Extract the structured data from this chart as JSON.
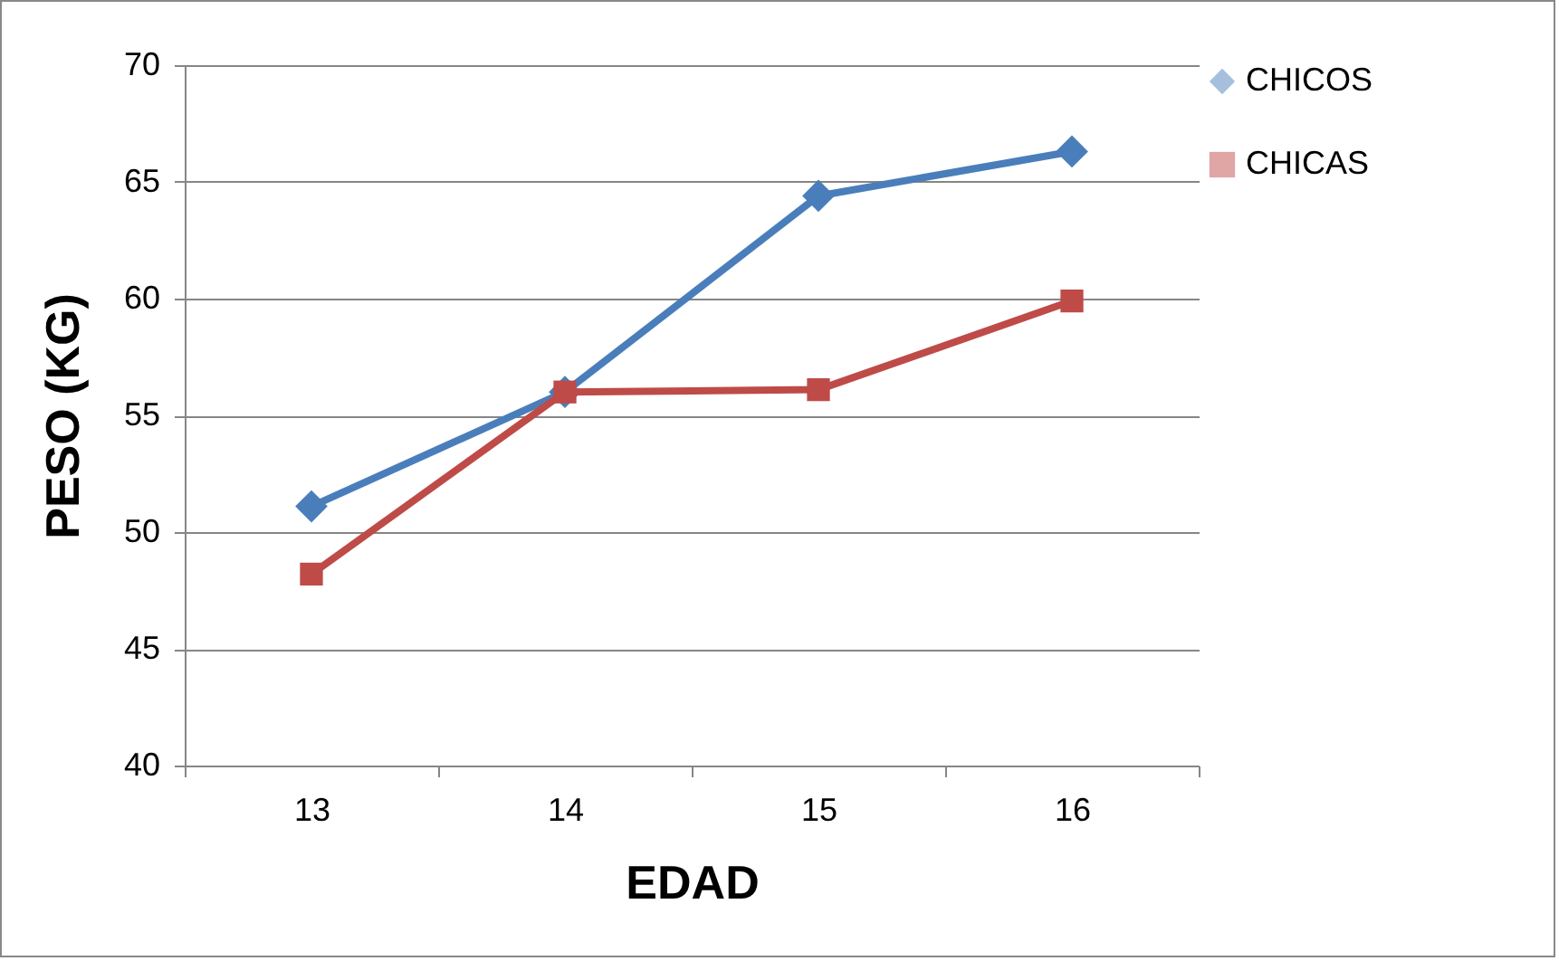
{
  "chart_data": {
    "type": "line",
    "xlabel": "EDAD",
    "ylabel": "PESO (KG)",
    "categories": [
      "13",
      "14",
      "15",
      "16"
    ],
    "series": [
      {
        "name": "CHICOS",
        "color": "#4a7ebb",
        "marker": "diamond",
        "values": [
          51.1,
          56.0,
          64.4,
          66.3
        ]
      },
      {
        "name": "CHICAS",
        "color": "#be4b48",
        "marker": "square",
        "values": [
          48.2,
          56.0,
          56.1,
          59.9
        ]
      }
    ],
    "ylim": [
      40,
      70
    ],
    "yticks": [
      40,
      45,
      50,
      55,
      60,
      65,
      70
    ],
    "grid": "y",
    "legend": "right"
  }
}
